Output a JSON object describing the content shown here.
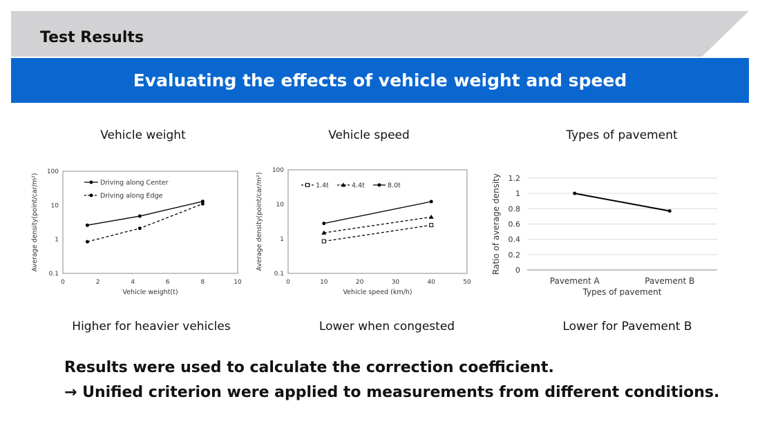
{
  "header": {
    "title": "Test Results"
  },
  "banner": {
    "title": "Evaluating the effects of vehicle weight and speed"
  },
  "panels": [
    {
      "title": "Vehicle weight",
      "caption": "Higher for heavier vehicles"
    },
    {
      "title": "Vehicle speed",
      "caption": "Lower when congested"
    },
    {
      "title": "Types of pavement",
      "caption": "Lower for Pavement B"
    }
  ],
  "conclusion": {
    "line1": "Results were used to calculate the correction coefficient.",
    "line2": "→ Unified criterion were applied to measurements from different conditions."
  },
  "colors": {
    "banner": "#0a67d0",
    "header_band": "#d2d2d4",
    "series": "#000000",
    "grid": "#d9d9d9"
  },
  "chart_data": [
    {
      "type": "line",
      "xlabel": "Vehicle weight(t)",
      "ylabel": "Average density(point/car/m²)",
      "xlim": [
        0,
        10
      ],
      "xticks": [
        0,
        2,
        4,
        6,
        8,
        10
      ],
      "ylim": [
        0.1,
        100
      ],
      "yscale": "log",
      "yticks": [
        0.1,
        1,
        10,
        100
      ],
      "ytick_labels": [
        "0.1",
        "1",
        "10",
        "100"
      ],
      "grid": false,
      "legend_position": "top-left",
      "series": [
        {
          "name": "Driving along Center",
          "style": "solid",
          "marker": "circle",
          "x": [
            1.4,
            4.4,
            8.0
          ],
          "y": [
            2.6,
            4.8,
            13
          ]
        },
        {
          "name": "Driving along Edge",
          "style": "dashed",
          "marker": "circle",
          "x": [
            1.4,
            4.4,
            8.0
          ],
          "y": [
            0.85,
            2.1,
            11
          ]
        }
      ]
    },
    {
      "type": "line",
      "xlabel": "Vehicle speed (km/h)",
      "ylabel": "Average density(point/car/m²)",
      "xlim": [
        0,
        50
      ],
      "xticks": [
        0,
        10,
        20,
        30,
        40,
        50
      ],
      "ylim": [
        0.1,
        100
      ],
      "yscale": "log",
      "yticks": [
        0.1,
        1,
        10,
        100
      ],
      "ytick_labels": [
        "0.1",
        "1",
        "10",
        "100"
      ],
      "grid": false,
      "legend_position": "top-left",
      "series": [
        {
          "name": "1.4t",
          "style": "dashed",
          "marker": "square-open",
          "x": [
            10,
            40
          ],
          "y": [
            0.85,
            2.5
          ]
        },
        {
          "name": "4.4t",
          "style": "dashed",
          "marker": "triangle",
          "x": [
            10,
            40
          ],
          "y": [
            1.5,
            4.3
          ]
        },
        {
          "name": "8.0t",
          "style": "solid",
          "marker": "circle",
          "x": [
            10,
            40
          ],
          "y": [
            2.8,
            12
          ]
        }
      ]
    },
    {
      "type": "line",
      "xlabel": "Types of pavement",
      "ylabel": "Ratio of average density",
      "categories": [
        "Pavement A",
        "Pavement B"
      ],
      "ylim": [
        0,
        1.2
      ],
      "yticks": [
        0,
        0.2,
        0.4,
        0.6,
        0.8,
        1,
        1.2
      ],
      "grid": true,
      "series": [
        {
          "style": "solid",
          "marker": "circle",
          "values": [
            1.0,
            0.77
          ]
        }
      ]
    }
  ]
}
